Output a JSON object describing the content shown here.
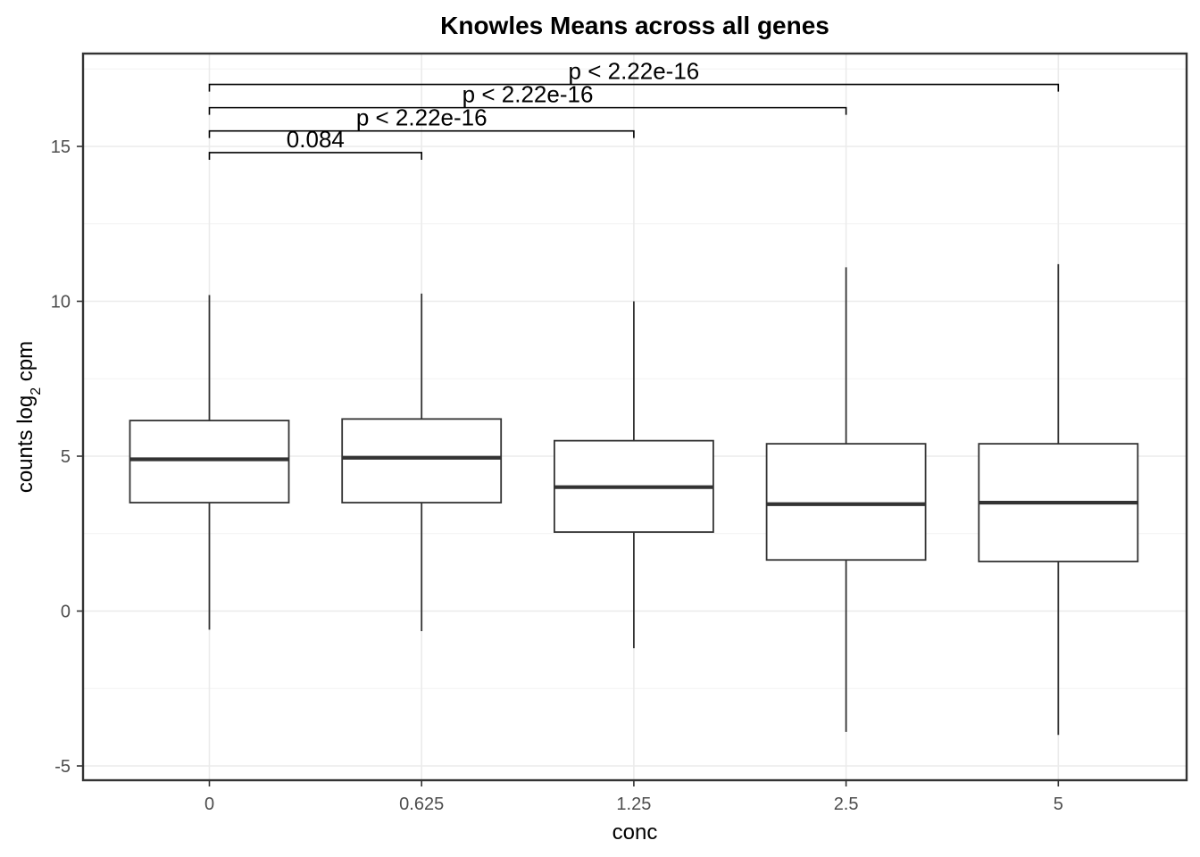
{
  "chart_data": {
    "type": "box",
    "title": "Knowles Means across all genes",
    "xlabel": "conc",
    "ylabel_main": "counts log",
    "ylabel_sub": "2",
    "ylabel_tail": " cpm",
    "categories": [
      "0",
      "0.625",
      "1.25",
      "2.5",
      "5"
    ],
    "boxes": [
      {
        "category": "0",
        "whisker_low": -0.6,
        "q1": 3.5,
        "median": 4.9,
        "q3": 6.15,
        "whisker_high": 10.2
      },
      {
        "category": "0.625",
        "whisker_low": -0.65,
        "q1": 3.5,
        "median": 4.95,
        "q3": 6.2,
        "whisker_high": 10.25
      },
      {
        "category": "1.25",
        "whisker_low": -1.2,
        "q1": 2.55,
        "median": 4.0,
        "q3": 5.5,
        "whisker_high": 10.0
      },
      {
        "category": "2.5",
        "whisker_low": -3.9,
        "q1": 1.65,
        "median": 3.45,
        "q3": 5.4,
        "whisker_high": 11.1
      },
      {
        "category": "5",
        "whisker_low": -4.0,
        "q1": 1.6,
        "median": 3.5,
        "q3": 5.4,
        "whisker_high": 11.2
      }
    ],
    "comparisons": [
      {
        "from": "0",
        "to": "0.625",
        "label": "0.084",
        "y": 14.8
      },
      {
        "from": "0",
        "to": "1.25",
        "label": "p < 2.22e-16",
        "y": 15.5
      },
      {
        "from": "0",
        "to": "2.5",
        "label": "p < 2.22e-16",
        "y": 16.25
      },
      {
        "from": "0",
        "to": "5",
        "label": "p < 2.22e-16",
        "y": 17.0
      }
    ],
    "ylim": [
      -5.5,
      18.2
    ],
    "yticks": [
      -5,
      0,
      5,
      10,
      15
    ],
    "ytick_labels": [
      "-5",
      "0",
      "5",
      "10",
      "15"
    ],
    "grid": true,
    "colors": {
      "box_stroke": "#333333",
      "box_fill": "#ffffff",
      "panel_border": "#333333",
      "text": "#000000",
      "tick_text": "#4d4d4d"
    }
  }
}
